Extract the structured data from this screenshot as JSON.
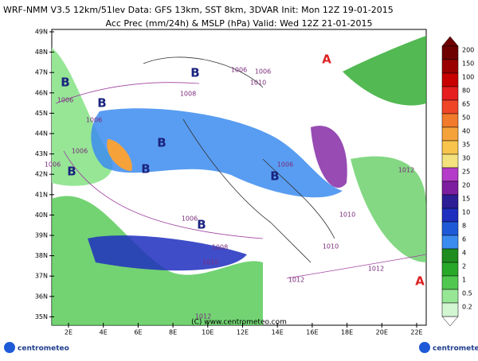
{
  "header": {
    "line1": "WRF-NMM V3.5 12km/51lev  Data: GFS 13km, SST 8km, 3DVAR  Init: Mon 12Z 19-01-2015",
    "line2": "Acc Prec (mm/24h) & MSLP (hPa)  Valid: Wed 12Z 21-01-2015"
  },
  "map": {
    "lat_labels": [
      "49N",
      "48N",
      "47N",
      "46N",
      "45N",
      "44N",
      "43N",
      "42N",
      "41N",
      "40N",
      "39N",
      "38N",
      "37N",
      "36N",
      "35N"
    ],
    "lon_labels": [
      "2E",
      "4E",
      "6E",
      "8E",
      "10E",
      "12E",
      "14E",
      "16E",
      "18E",
      "20E",
      "22E"
    ],
    "isobar_labels": [
      "1006",
      "1006",
      "1006",
      "1006",
      "1008",
      "1006",
      "1010",
      "1006",
      "1012",
      "1010",
      "1012",
      "1006",
      "1008",
      "1010",
      "1012",
      "1012",
      "1010",
      "1006"
    ],
    "pressure_centers": [
      "B",
      "B",
      "B",
      "B",
      "B",
      "B",
      "B",
      "B",
      "A",
      "A"
    ],
    "copyright": "(C) www.centrometeo.com"
  },
  "colorbar": {
    "levels": [
      200,
      150,
      100,
      80,
      65,
      50,
      40,
      35,
      30,
      25,
      20,
      15,
      10,
      8,
      6,
      4,
      2,
      1,
      0.5,
      0.2
    ],
    "colors": [
      "#6e0000",
      "#9a0000",
      "#c80000",
      "#e61e1e",
      "#f04628",
      "#f27a2c",
      "#f5a23a",
      "#f8c44c",
      "#f3e27e",
      "#b43cc8",
      "#7d1ea0",
      "#2d1e96",
      "#1e2ebe",
      "#1e5ad8",
      "#3c8cf0",
      "#1e8c1e",
      "#28a828",
      "#50c850",
      "#96e696",
      "#d2f5d2"
    ]
  },
  "footer": {
    "logo_left": "centrometeo",
    "logo_right": "centrometeo"
  }
}
